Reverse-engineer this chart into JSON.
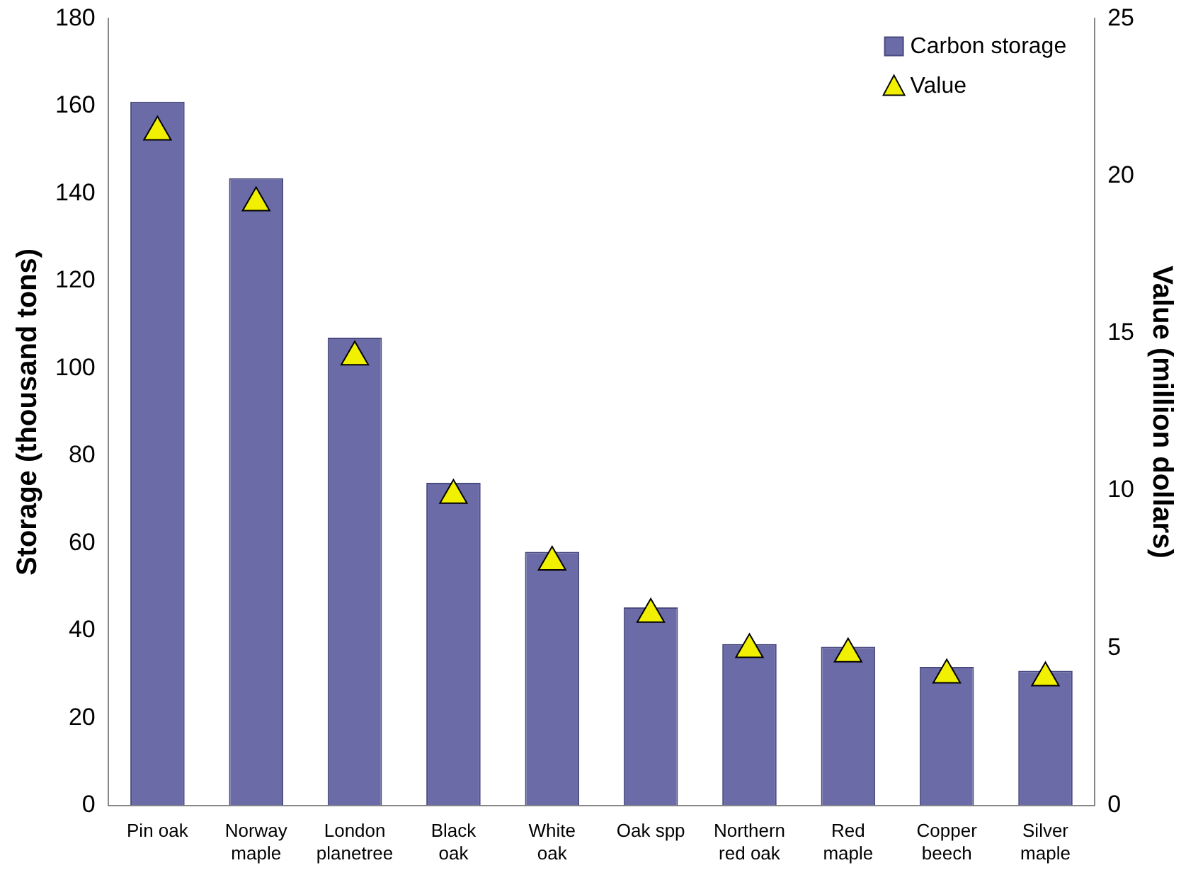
{
  "chart_data": {
    "type": "bar",
    "ylabel": "Storage (thousand tons)",
    "y2label": "Value (million dollars)",
    "categories": [
      "Pin oak",
      "Norway maple",
      "London planetree",
      "Black oak",
      "White oak",
      "Oak spp",
      "Northern red oak",
      "Red maple",
      "Copper beech",
      "Silver maple"
    ],
    "series": [
      {
        "name": "Carbon storage",
        "color": "#6b6ba8",
        "values": [
          161,
          143.5,
          107,
          73.8,
          58,
          45.3,
          36.9,
          36.3,
          31.7,
          30.8
        ]
      },
      {
        "name": "Value",
        "type": "scatter",
        "axis": "y2",
        "color": "#f0f000",
        "marker": "triangle",
        "values": [
          21.4,
          19.15,
          14.25,
          9.85,
          7.73,
          6.07,
          4.95,
          4.81,
          4.14,
          4.05
        ]
      }
    ],
    "ylim": [
      0,
      180
    ],
    "yticks": [
      0,
      20,
      40,
      60,
      80,
      100,
      120,
      140,
      160,
      180
    ],
    "y2lim": [
      0,
      25
    ],
    "y2ticks": [
      0,
      5,
      10,
      15,
      20,
      25
    ],
    "grid": false,
    "legend": "top right"
  }
}
